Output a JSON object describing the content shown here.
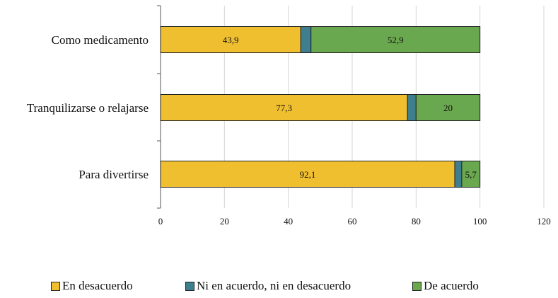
{
  "chart_data": {
    "type": "bar",
    "orientation": "horizontal",
    "stacked": true,
    "categories": [
      "Como medicamento",
      "Tranquilizarse o relajarse",
      "Para divertirse"
    ],
    "series": [
      {
        "name": "En desacuerdo",
        "color": "#F0BF30",
        "values": [
          43.9,
          77.3,
          92.1
        ],
        "labels": [
          "43,9",
          "77,3",
          "92,1"
        ]
      },
      {
        "name": "Ni en acuerdo, ni en desacuerdo",
        "color": "#3E7E8E",
        "values": [
          3.2,
          2.7,
          2.2
        ],
        "labels": [
          "",
          "",
          ""
        ]
      },
      {
        "name": "De acuerdo",
        "color": "#6AA84F",
        "values": [
          52.9,
          20,
          5.7
        ],
        "labels": [
          "52,9",
          "20",
          "5,7"
        ]
      }
    ],
    "xlim": [
      0,
      120
    ],
    "xticks": [
      "0",
      "20",
      "40",
      "60",
      "80",
      "100",
      "120"
    ],
    "grid": true,
    "legend_position": "bottom"
  }
}
